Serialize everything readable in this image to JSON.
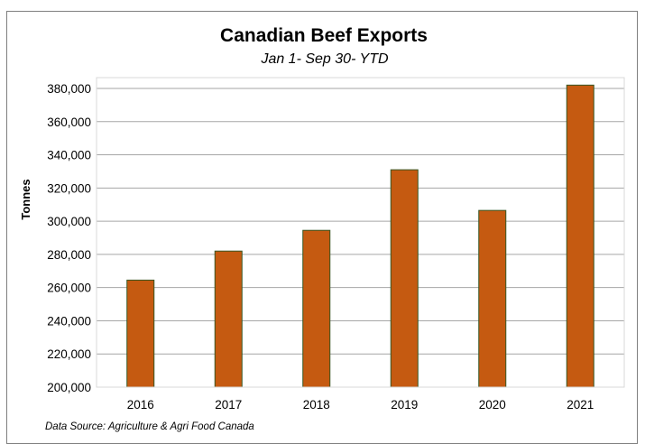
{
  "chart_data": {
    "type": "bar",
    "title": "Canadian Beef Exports",
    "subtitle": "Jan 1- Sep 30- YTD",
    "ylabel": "Tonnes",
    "xlabel": "",
    "categories": [
      "2016",
      "2017",
      "2018",
      "2019",
      "2020",
      "2021"
    ],
    "values": [
      264500,
      282000,
      294500,
      331000,
      306500,
      382000
    ],
    "ylim": [
      200000,
      380000
    ],
    "yticks": [
      "200,000",
      "220,000",
      "240,000",
      "260,000",
      "280,000",
      "300,000",
      "320,000",
      "340,000",
      "360,000",
      "380,000"
    ],
    "ytick_values": [
      200000,
      220000,
      240000,
      260000,
      280000,
      300000,
      320000,
      340000,
      360000,
      380000
    ],
    "grid": true,
    "legend": "none",
    "source": "Data Source: Agriculture & Agri Food Canada",
    "colors": {
      "bar_fill": "#c55a11",
      "bar_stroke": "#375623",
      "grid": "#a6a6a6",
      "axis": "#595959"
    }
  }
}
